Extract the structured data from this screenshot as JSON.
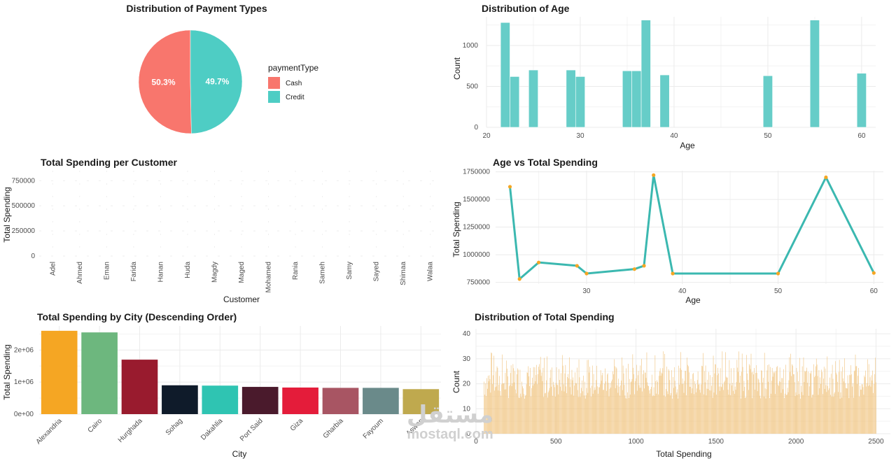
{
  "colors": {
    "cash": "#F8766D",
    "credit": "#4ECDC4",
    "teal": "#66CDC8",
    "line": "#3BB8B0",
    "point": "#F5A623",
    "hist": "#F0C27B",
    "grid": "#EBEBEB"
  },
  "watermark": {
    "arabic": "مستقل",
    "latin": "mostaql.com"
  },
  "chart_data": [
    {
      "id": "payment-pie",
      "type": "pie",
      "title": "Distribution of Payment Types",
      "legend_title": "paymentType",
      "legend_position": "right",
      "slices": [
        {
          "label": "Cash",
          "value": 50.3,
          "text": "50.3%",
          "color": "#F8766D"
        },
        {
          "label": "Credit",
          "value": 49.7,
          "text": "49.7%",
          "color": "#4ECDC4"
        }
      ]
    },
    {
      "id": "age-hist",
      "type": "bar",
      "title": "Distribution of Age",
      "xlabel": "Age",
      "ylabel": "Count",
      "xlim": [
        20,
        61.5
      ],
      "ylim": [
        0,
        1350
      ],
      "xticks": [
        20,
        30,
        40,
        50,
        60
      ],
      "yticks": [
        0,
        500,
        1000
      ],
      "bin_width": 1,
      "bins": [
        {
          "x": 22,
          "count": 1280
        },
        {
          "x": 23,
          "count": 620
        },
        {
          "x": 25,
          "count": 700
        },
        {
          "x": 29,
          "count": 700
        },
        {
          "x": 30,
          "count": 620
        },
        {
          "x": 35,
          "count": 690
        },
        {
          "x": 36,
          "count": 690
        },
        {
          "x": 37,
          "count": 1310
        },
        {
          "x": 39,
          "count": 640
        },
        {
          "x": 50,
          "count": 630
        },
        {
          "x": 55,
          "count": 1310
        },
        {
          "x": 60,
          "count": 660
        }
      ]
    },
    {
      "id": "customer-bar",
      "type": "bar",
      "title": "Total Spending per Customer",
      "xlabel": "Customer",
      "ylabel": "Total Spending",
      "ylim": [
        0,
        850000
      ],
      "yticks": [
        0,
        250000,
        500000,
        750000
      ],
      "categories": [
        "Adel",
        "Ahmed",
        "Eman",
        "Farida",
        "Hanan",
        "Huda",
        "Magdy",
        "Maged",
        "Mohamed",
        "Rania",
        "Sameh",
        "Samy",
        "Sayed",
        "Shimaa",
        "Walaa"
      ],
      "values": [
        0,
        0,
        0,
        0,
        0,
        0,
        0,
        0,
        0,
        0,
        0,
        0,
        0,
        0,
        0
      ]
    },
    {
      "id": "age-spending-line",
      "type": "line",
      "title": "Age vs Total Spending",
      "xlabel": "Age",
      "ylabel": "Total Spending",
      "xlim": [
        20.5,
        61
      ],
      "ylim": [
        735000,
        1760000
      ],
      "xticks": [
        30,
        40,
        50,
        60
      ],
      "yticks": [
        750000,
        1000000,
        1250000,
        1500000,
        1750000
      ],
      "x": [
        22,
        23,
        25,
        29,
        30,
        35,
        36,
        37,
        39,
        50,
        55,
        60
      ],
      "y": [
        1615000,
        780000,
        930000,
        900000,
        830000,
        870000,
        900000,
        1720000,
        830000,
        830000,
        1700000,
        835000
      ]
    },
    {
      "id": "city-bar",
      "type": "bar",
      "title": "Total Spending by City (Descending Order)",
      "xlabel": "City",
      "ylabel": "Total Spending",
      "ylim": [
        0,
        2750000
      ],
      "yticks": [
        0,
        1000000,
        2000000
      ],
      "ytick_labels": [
        "0e+00",
        "1e+06",
        "2e+06"
      ],
      "categories": [
        "Alexandria",
        "Cairo",
        "Hurghada",
        "Sohag",
        "Dakahlia",
        "Port Said",
        "Giza",
        "Gharbia",
        "Fayoum",
        "Aswan"
      ],
      "values": [
        2600000,
        2550000,
        1700000,
        900000,
        890000,
        850000,
        830000,
        820000,
        820000,
        780000
      ],
      "colors": [
        "#F5A623",
        "#6DB77E",
        "#991B2E",
        "#0F1B2A",
        "#2FC4B2",
        "#4A1A2C",
        "#E41C3A",
        "#A85563",
        "#6A8A8A",
        "#BFA94E"
      ]
    },
    {
      "id": "spending-hist",
      "type": "bar",
      "title": "Distribution of Total Spending",
      "xlabel": "Total Spending",
      "ylabel": "Count",
      "xlim": [
        0,
        2590
      ],
      "ylim": [
        0,
        42
      ],
      "xticks": [
        0,
        500,
        1000,
        1500,
        2000,
        2500
      ],
      "yticks": [
        0,
        10,
        20,
        30,
        40
      ],
      "range": [
        50,
        2500
      ],
      "bin_width": 4,
      "counts_range": [
        12,
        33
      ],
      "typical_count": 21
    }
  ]
}
